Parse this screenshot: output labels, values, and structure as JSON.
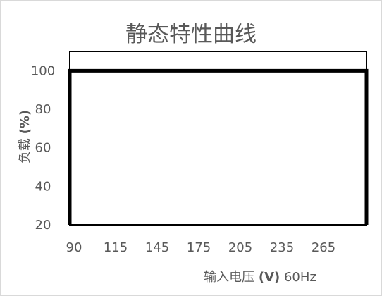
{
  "chart_data": {
    "type": "area",
    "title": "静态特性曲线",
    "xlabel": {
      "prefix": "输入电压",
      "unit": "(V)",
      "suffix": "60Hz"
    },
    "ylabel": {
      "prefix": "负载",
      "unit": "(%)"
    },
    "categories": [
      "90",
      "115",
      "145",
      "175",
      "205",
      "235",
      "265"
    ],
    "x_extent": [
      "90",
      "290"
    ],
    "y_ticks": [
      20,
      40,
      60,
      80,
      100
    ],
    "ylim": [
      20,
      110
    ],
    "series": [
      {
        "values": [
          100,
          100,
          100,
          100,
          100,
          100,
          100
        ],
        "x_start": "90",
        "x_end": "290"
      }
    ],
    "grid": false,
    "legend": "none",
    "colors": {
      "series": "#000000",
      "frame": "#000000",
      "text": "#595959"
    }
  }
}
